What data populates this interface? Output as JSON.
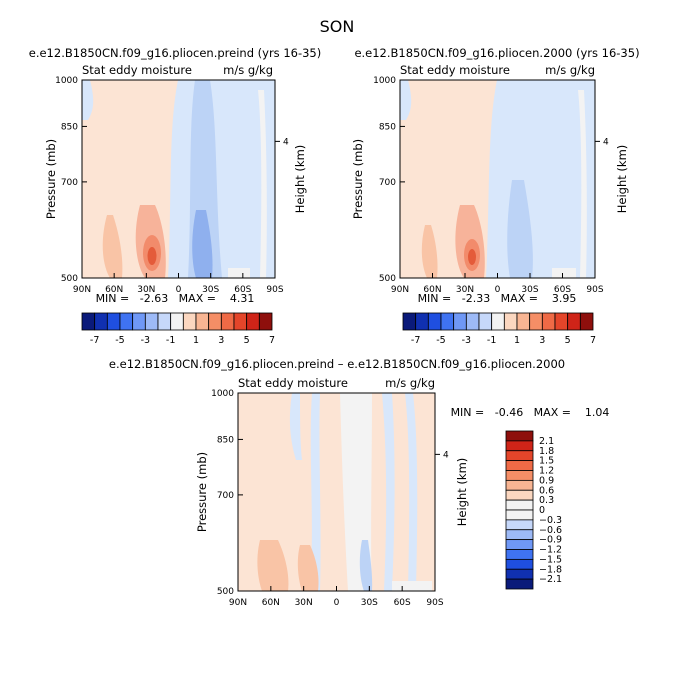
{
  "page": {
    "title": "SON"
  },
  "panels": [
    {
      "id": "preind",
      "title": "e.e12.B1850CN.f09_g16.pliocen.preind (yrs 16-35)",
      "left_label": "Stat eddy moisture",
      "right_label": "m/s g/kg",
      "ylabel": "Pressure (mb)",
      "ylabel_right": "Height (km)",
      "min_max_text": "MIN =   -2.63   MAX =    4.31"
    },
    {
      "id": "y2000",
      "title": "e.e12.B1850CN.f09_g16.pliocen.2000 (yrs 16-35)",
      "left_label": "Stat eddy moisture",
      "right_label": "m/s g/kg",
      "ylabel": "Pressure (mb)",
      "ylabel_right": "Height (km)",
      "min_max_text": "MIN =   -2.33   MAX =    3.95"
    },
    {
      "id": "diff",
      "title": "e.e12.B1850CN.f09_g16.pliocen.preind – e.e12.B1850CN.f09_g16.pliocen.2000",
      "left_label": "Stat eddy moisture",
      "right_label": "m/s g/kg",
      "ylabel": "Pressure (mb)",
      "ylabel_right": "Height (km)",
      "min_max_text": "MIN =   -0.46   MAX =    1.04"
    }
  ],
  "chart_data": [
    {
      "type": "heatmap",
      "panel": "preind",
      "x_ticks": [
        "90N",
        "60N",
        "30N",
        "0",
        "30S",
        "60S",
        "90S"
      ],
      "y_ticks": [
        "500",
        "700",
        "850",
        "1000"
      ],
      "y_right_ticks": [
        "4"
      ],
      "xlim": [
        90,
        -90
      ],
      "ylim": [
        1000,
        500
      ],
      "value_min": -2.63,
      "value_max": 4.31
    },
    {
      "type": "heatmap",
      "panel": "y2000",
      "x_ticks": [
        "90N",
        "60N",
        "30N",
        "0",
        "30S",
        "60S",
        "90S"
      ],
      "y_ticks": [
        "500",
        "700",
        "850",
        "1000"
      ],
      "y_right_ticks": [
        "4"
      ],
      "xlim": [
        90,
        -90
      ],
      "ylim": [
        1000,
        500
      ],
      "value_min": -2.33,
      "value_max": 3.95
    },
    {
      "type": "heatmap",
      "panel": "diff",
      "x_ticks": [
        "90N",
        "60N",
        "30N",
        "0",
        "30S",
        "60S",
        "90S"
      ],
      "y_ticks": [
        "500",
        "700",
        "850",
        "1000"
      ],
      "y_right_ticks": [
        "4"
      ],
      "xlim": [
        90,
        -90
      ],
      "ylim": [
        1000,
        500
      ],
      "value_min": -0.46,
      "value_max": 1.04
    }
  ],
  "colorbars": {
    "horizontal": {
      "labels": [
        "-7",
        "-5",
        "-3",
        "-1",
        "1",
        "3",
        "5",
        "7"
      ],
      "colors": [
        "#0a1a7a",
        "#1030b0",
        "#1f4fe0",
        "#3f73f2",
        "#6f98f6",
        "#9dbaf7",
        "#c6d8fa",
        "#f3f3f3",
        "#fbd7c0",
        "#f8b593",
        "#f58e66",
        "#ef6a46",
        "#e4452a",
        "#cf2418",
        "#8e0f0c"
      ]
    },
    "vertical": {
      "labels": [
        "2.1",
        "1.8",
        "1.5",
        "1.2",
        "0.9",
        "0.6",
        "0.3",
        "0",
        "−0.3",
        "−0.6",
        "−0.9",
        "−1.2",
        "−1.5",
        "−1.8",
        "−2.1"
      ],
      "colors": [
        "#8e0f0c",
        "#cf2418",
        "#e4452a",
        "#ef6a46",
        "#f58e66",
        "#f8b593",
        "#fbd7c0",
        "#f3f3f3",
        "#f3f3f3",
        "#c6d8fa",
        "#9dbaf7",
        "#6f98f6",
        "#3f73f2",
        "#1f4fe0",
        "#1030b0",
        "#0a1a7a"
      ]
    }
  }
}
